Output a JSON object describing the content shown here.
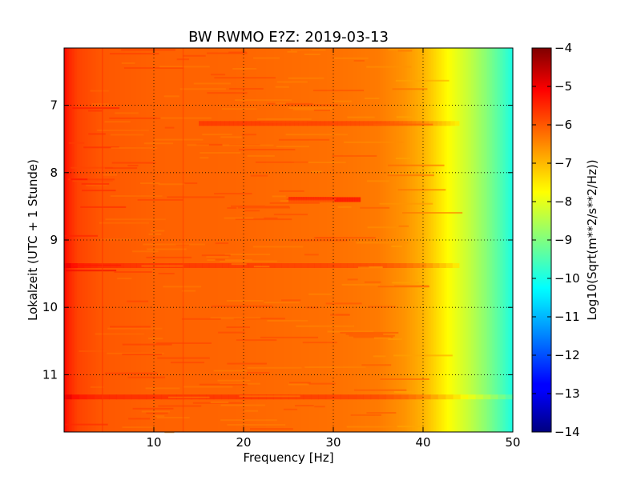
{
  "chart_data": {
    "type": "heatmap",
    "title": "BW RWMO E?Z: 2019-03-13",
    "xlabel": "Frequency [Hz]",
    "ylabel": "Lokalzeit (UTC + 1 Stunde)",
    "colorbar_label": "Log10(Sqrt(m**2/s**2/Hz))",
    "xlim": [
      0,
      50
    ],
    "ylim_top_to_bottom": [
      6.15,
      11.85
    ],
    "x_ticks": [
      10,
      20,
      30,
      40,
      50
    ],
    "x_tick_labels": [
      "10",
      "20",
      "30",
      "40",
      "50"
    ],
    "y_ticks": [
      7,
      8,
      9,
      10,
      11
    ],
    "y_tick_labels": [
      "7",
      "8",
      "9",
      "10",
      "11"
    ],
    "colorbar_range": [
      -14,
      -4
    ],
    "colorbar_ticks": [
      -4,
      -5,
      -6,
      -7,
      -8,
      -9,
      -10,
      -11,
      -12,
      -13,
      -14
    ],
    "colorbar_tick_labels": [
      "−4",
      "−5",
      "−6",
      "−7",
      "−8",
      "−9",
      "−10",
      "−11",
      "−12",
      "−13",
      "−14"
    ],
    "colormap": "jet",
    "grid": true,
    "spectrum_profile": {
      "frequency_hz": [
        0,
        0.5,
        1.5,
        4,
        10,
        20,
        30,
        35,
        38,
        40,
        41.5,
        43,
        45,
        47,
        49,
        50
      ],
      "log10_value": [
        -5.3,
        -5.6,
        -5.9,
        -6.1,
        -6.2,
        -6.25,
        -6.35,
        -6.45,
        -6.7,
        -7.0,
        -7.4,
        -7.8,
        -8.3,
        -8.9,
        -9.6,
        -10.0
      ]
    },
    "horizontal_bands": [
      {
        "time": 7.27,
        "f_start": 15,
        "f_end": 44,
        "delta": 0.45
      },
      {
        "time": 8.4,
        "f_start": 25,
        "f_end": 33,
        "delta": 0.9
      },
      {
        "time": 9.38,
        "f_start": 0,
        "f_end": 44,
        "delta": 0.45
      },
      {
        "time": 11.33,
        "f_start": 0,
        "f_end": 50,
        "delta": 0.5
      }
    ]
  }
}
